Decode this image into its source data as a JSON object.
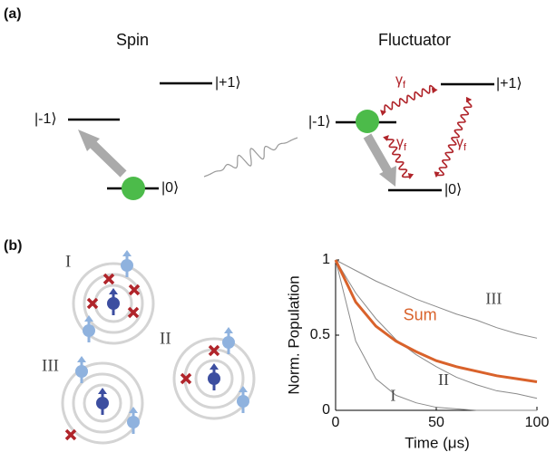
{
  "panel_a": {
    "label": "(a)",
    "spin_title": "Spin",
    "fluctuator_title": "Fluctuator",
    "spin_levels": [
      "|-1⟩",
      "|0⟩",
      "|+1⟩"
    ],
    "fluctuator_levels": [
      "|-1⟩",
      "|0⟩",
      "|+1⟩"
    ],
    "rate": {
      "symbol": "γ",
      "subscript": "f"
    }
  },
  "panel_b": {
    "label": "(b)",
    "regions": [
      "I",
      "II",
      "III"
    ]
  },
  "chart_data": {
    "type": "line",
    "xlabel": "Time (μs)",
    "ylabel": "Norm. Population",
    "x": [
      0,
      10,
      20,
      30,
      40,
      50,
      60,
      70,
      80,
      90,
      100
    ],
    "xlim": [
      0,
      100
    ],
    "ylim": [
      0,
      1
    ],
    "xticks": [
      0,
      50,
      100
    ],
    "yticks": [
      0,
      0.5,
      1
    ],
    "series": [
      {
        "name": "I",
        "color": "#8a8a8a",
        "values": [
          1,
          0.46,
          0.21,
          0.1,
          0.05,
          0.02,
          0.01,
          0,
          0,
          0,
          0
        ]
      },
      {
        "name": "II",
        "color": "#8a8a8a",
        "values": [
          1,
          0.78,
          0.61,
          0.47,
          0.37,
          0.29,
          0.22,
          0.17,
          0.13,
          0.11,
          0.08
        ]
      },
      {
        "name": "III",
        "color": "#8a8a8a",
        "values": [
          1,
          0.93,
          0.86,
          0.8,
          0.74,
          0.69,
          0.64,
          0.6,
          0.55,
          0.51,
          0.48
        ]
      },
      {
        "name": "Sum",
        "color": "#d9622b",
        "values": [
          1,
          0.72,
          0.56,
          0.46,
          0.39,
          0.33,
          0.29,
          0.26,
          0.23,
          0.21,
          0.19
        ]
      }
    ]
  }
}
